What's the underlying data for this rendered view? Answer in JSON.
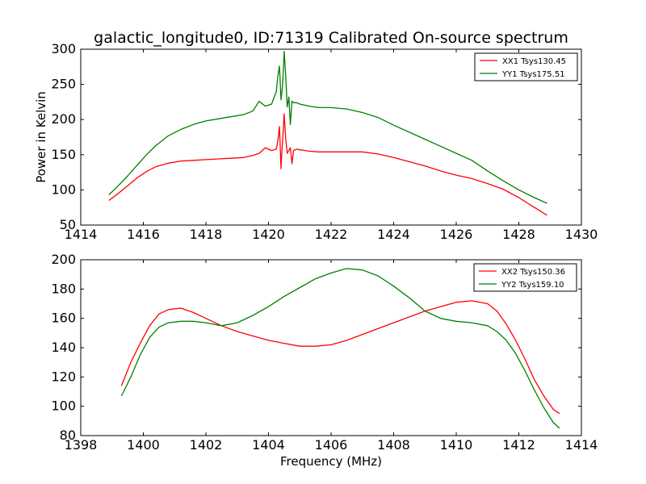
{
  "figure": {
    "title": "galactic_longitude0, ID:71319 Calibrated On-source spectrum"
  },
  "chart_data": [
    {
      "type": "line",
      "title": "galactic_longitude0, ID:71319 Calibrated On-source spectrum",
      "xlabel": "",
      "ylabel": "Power in Kelvin",
      "xlim": [
        1414,
        1430
      ],
      "ylim": [
        50,
        300
      ],
      "xticks": [
        1414,
        1416,
        1418,
        1420,
        1422,
        1424,
        1426,
        1428,
        1430
      ],
      "yticks": [
        50,
        100,
        150,
        200,
        250,
        300
      ],
      "grid": false,
      "legend_position": "top-right",
      "series": [
        {
          "name": "XX1 Tsys130.45",
          "color": "#ff0000",
          "x": [
            1414.9,
            1415.2,
            1415.5,
            1415.8,
            1416.1,
            1416.4,
            1416.8,
            1417.2,
            1417.6,
            1418.0,
            1418.4,
            1418.8,
            1419.2,
            1419.5,
            1419.7,
            1419.9,
            1420.1,
            1420.25,
            1420.3,
            1420.35,
            1420.4,
            1420.42,
            1420.45,
            1420.5,
            1420.55,
            1420.6,
            1420.65,
            1420.7,
            1420.75,
            1420.8,
            1420.9,
            1421.0,
            1421.3,
            1421.6,
            1422.0,
            1422.5,
            1423.0,
            1423.5,
            1424.0,
            1424.5,
            1425.0,
            1425.5,
            1426.0,
            1426.5,
            1427.0,
            1427.5,
            1428.0,
            1428.5,
            1428.9
          ],
          "y": [
            85,
            95,
            106,
            117,
            126,
            133,
            138,
            141,
            142,
            143,
            144,
            145,
            146,
            149,
            152,
            160,
            156,
            158,
            170,
            190,
            130,
            150,
            168,
            208,
            172,
            152,
            156,
            160,
            137,
            156,
            158,
            157,
            155,
            154,
            154,
            154,
            154,
            151,
            146,
            140,
            134,
            127,
            121,
            116,
            109,
            101,
            89,
            75,
            64
          ]
        },
        {
          "name": "YY1 Tsys175.51",
          "color": "#008000",
          "x": [
            1414.9,
            1415.2,
            1415.5,
            1415.8,
            1416.1,
            1416.4,
            1416.8,
            1417.2,
            1417.6,
            1418.0,
            1418.4,
            1418.8,
            1419.2,
            1419.5,
            1419.7,
            1419.9,
            1420.1,
            1420.25,
            1420.3,
            1420.35,
            1420.4,
            1420.45,
            1420.5,
            1420.55,
            1420.6,
            1420.65,
            1420.7,
            1420.75,
            1420.8,
            1420.9,
            1421.0,
            1421.3,
            1421.6,
            1422.0,
            1422.5,
            1423.0,
            1423.5,
            1424.0,
            1424.5,
            1425.0,
            1425.5,
            1426.0,
            1426.5,
            1427.0,
            1427.5,
            1428.0,
            1428.5,
            1428.9
          ],
          "y": [
            93,
            106,
            120,
            135,
            150,
            163,
            177,
            186,
            193,
            198,
            201,
            204,
            207,
            212,
            226,
            219,
            222,
            240,
            262,
            276,
            228,
            248,
            297,
            262,
            218,
            232,
            193,
            226,
            224,
            224,
            222,
            219,
            217,
            217,
            215,
            210,
            203,
            192,
            182,
            172,
            162,
            152,
            142,
            127,
            113,
            100,
            89,
            81
          ]
        }
      ]
    },
    {
      "type": "line",
      "title": "",
      "xlabel": "Frequency (MHz)",
      "ylabel": "",
      "xlim": [
        1398,
        1414
      ],
      "ylim": [
        80,
        200
      ],
      "xticks": [
        1398,
        1400,
        1402,
        1404,
        1406,
        1408,
        1410,
        1412,
        1414
      ],
      "yticks": [
        80,
        100,
        120,
        140,
        160,
        180,
        200
      ],
      "grid": false,
      "legend_position": "top-right",
      "series": [
        {
          "name": "XX2 Tsys150.36",
          "color": "#ff0000",
          "x": [
            1399.3,
            1399.6,
            1399.9,
            1400.2,
            1400.5,
            1400.8,
            1401.2,
            1401.6,
            1402.0,
            1402.5,
            1403.0,
            1403.5,
            1404.0,
            1404.5,
            1405.0,
            1405.5,
            1406.0,
            1406.5,
            1407.0,
            1407.5,
            1408.0,
            1408.5,
            1409.0,
            1409.5,
            1410.0,
            1410.5,
            1411.0,
            1411.3,
            1411.6,
            1411.9,
            1412.2,
            1412.5,
            1412.8,
            1413.1,
            1413.3
          ],
          "y": [
            114,
            130,
            143,
            155,
            163,
            166,
            167,
            164,
            160,
            155,
            151,
            148,
            145,
            143,
            141,
            141,
            142,
            145,
            149,
            153,
            157,
            161,
            165,
            168,
            171,
            172,
            170,
            165,
            156,
            145,
            132,
            118,
            107,
            98,
            95
          ]
        },
        {
          "name": "YY2 Tsys159.10",
          "color": "#008000",
          "x": [
            1399.3,
            1399.6,
            1399.9,
            1400.2,
            1400.5,
            1400.8,
            1401.2,
            1401.6,
            1402.0,
            1402.5,
            1403.0,
            1403.5,
            1404.0,
            1404.5,
            1405.0,
            1405.5,
            1406.0,
            1406.5,
            1407.0,
            1407.5,
            1408.0,
            1408.5,
            1409.0,
            1409.5,
            1410.0,
            1410.5,
            1411.0,
            1411.3,
            1411.6,
            1411.9,
            1412.2,
            1412.5,
            1412.8,
            1413.1,
            1413.3
          ],
          "y": [
            107,
            120,
            135,
            147,
            154,
            157,
            158,
            158,
            157,
            155,
            157,
            162,
            168,
            175,
            181,
            187,
            191,
            194,
            193,
            189,
            182,
            174,
            165,
            160,
            158,
            157,
            155,
            151,
            145,
            136,
            124,
            111,
            99,
            89,
            85
          ]
        }
      ]
    }
  ]
}
